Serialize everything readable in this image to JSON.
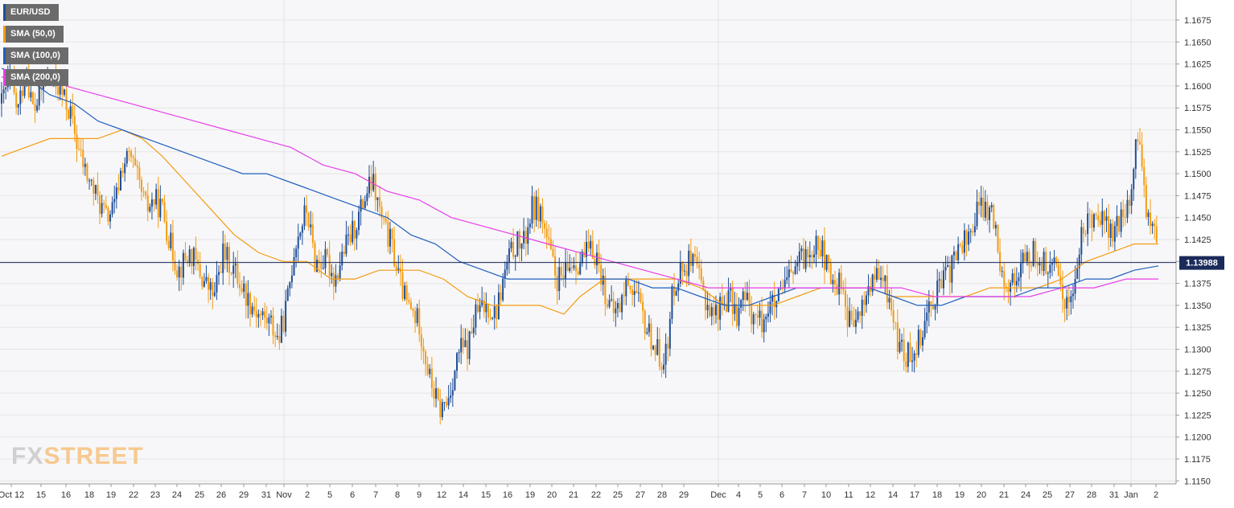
{
  "legend": [
    {
      "label": "EUR/USD",
      "color": "#1f4e96"
    },
    {
      "label": "SMA (50,0)",
      "color": "#f39c12"
    },
    {
      "label": "SMA (100,0)",
      "color": "#1f5fbf"
    },
    {
      "label": "SMA (200,0)",
      "color": "#e83ee8"
    }
  ],
  "brand": {
    "fx": "FX",
    "street": "STREET"
  },
  "price_tag": "1.13988",
  "colors": {
    "bull": "#1f4e96",
    "bear": "#f39c12",
    "sma50": "#f39c12",
    "sma100": "#1f5fbf",
    "sma200": "#e83ee8",
    "grid": "#e6e6e6",
    "price_line": "#1a2a5a",
    "tag_bg": "#1a2a5a"
  },
  "chart_data": {
    "type": "candlestick",
    "title": "",
    "ylim": [
      1.115,
      1.17
    ],
    "y_ticks": [
      "1.1675",
      "1.1650",
      "1.1625",
      "1.1600",
      "1.1575",
      "1.1550",
      "1.1525",
      "1.1500",
      "1.1475",
      "1.1450",
      "1.1425",
      "1.1400",
      "1.1375",
      "1.1350",
      "1.1325",
      "1.1300",
      "1.1275",
      "1.1250",
      "1.1225",
      "1.1200",
      "1.1175",
      "1.1150"
    ],
    "x_ticks": [
      "Oct 12",
      "15",
      "16",
      "18",
      "19",
      "22",
      "23",
      "24",
      "25",
      "26",
      "29",
      "31",
      "Nov",
      "2",
      "5",
      "6",
      "7",
      "8",
      "9",
      "12",
      "14",
      "15",
      "16",
      "19",
      "20",
      "21",
      "22",
      "25",
      "27",
      "28",
      "29",
      "Dec",
      "4",
      "5",
      "6",
      "7",
      "10",
      "11",
      "12",
      "14",
      "17",
      "18",
      "19",
      "20",
      "21",
      "24",
      "25",
      "27",
      "28",
      "31",
      "Jan",
      "2"
    ],
    "current_price": 1.13988,
    "price_anchors": [
      [
        0,
        1.158
      ],
      [
        10,
        1.161
      ],
      [
        20,
        1.157
      ],
      [
        30,
        1.162
      ],
      [
        40,
        1.157
      ],
      [
        55,
        1.161
      ],
      [
        70,
        1.16
      ],
      [
        85,
        1.157
      ],
      [
        95,
        1.153
      ],
      [
        105,
        1.15
      ],
      [
        120,
        1.147
      ],
      [
        130,
        1.145
      ],
      [
        140,
        1.146
      ],
      [
        150,
        1.151
      ],
      [
        160,
        1.152
      ],
      [
        170,
        1.149
      ],
      [
        180,
        1.146
      ],
      [
        190,
        1.147
      ],
      [
        200,
        1.146
      ],
      [
        210,
        1.142
      ],
      [
        220,
        1.139
      ],
      [
        235,
        1.141
      ],
      [
        250,
        1.138
      ],
      [
        265,
        1.136
      ],
      [
        275,
        1.141
      ],
      [
        290,
        1.139
      ],
      [
        305,
        1.136
      ],
      [
        320,
        1.134
      ],
      [
        335,
        1.133
      ],
      [
        345,
        1.131
      ],
      [
        355,
        1.135
      ],
      [
        365,
        1.142
      ],
      [
        380,
        1.146
      ],
      [
        390,
        1.14
      ],
      [
        405,
        1.14
      ],
      [
        415,
        1.138
      ],
      [
        425,
        1.141
      ],
      [
        440,
        1.144
      ],
      [
        455,
        1.148
      ],
      [
        462,
        1.149
      ],
      [
        475,
        1.144
      ],
      [
        485,
        1.142
      ],
      [
        495,
        1.138
      ],
      [
        505,
        1.135
      ],
      [
        520,
        1.133
      ],
      [
        532,
        1.127
      ],
      [
        545,
        1.123
      ],
      [
        555,
        1.124
      ],
      [
        570,
        1.13
      ],
      [
        580,
        1.13
      ],
      [
        590,
        1.134
      ],
      [
        605,
        1.135
      ],
      [
        615,
        1.134
      ],
      [
        630,
        1.14
      ],
      [
        640,
        1.142
      ],
      [
        650,
        1.142
      ],
      [
        660,
        1.146
      ],
      [
        670,
        1.146
      ],
      [
        680,
        1.142
      ],
      [
        690,
        1.138
      ],
      [
        700,
        1.138
      ],
      [
        710,
        1.14
      ],
      [
        720,
        1.14
      ],
      [
        730,
        1.141
      ],
      [
        740,
        1.141
      ],
      [
        750,
        1.137
      ],
      [
        760,
        1.134
      ],
      [
        770,
        1.135
      ],
      [
        780,
        1.138
      ],
      [
        790,
        1.136
      ],
      [
        800,
        1.133
      ],
      [
        810,
        1.131
      ],
      [
        820,
        1.129
      ],
      [
        830,
        1.13
      ],
      [
        835,
        1.137
      ],
      [
        845,
        1.139
      ],
      [
        855,
        1.14
      ],
      [
        865,
        1.139
      ],
      [
        875,
        1.136
      ],
      [
        885,
        1.134
      ],
      [
        895,
        1.135
      ],
      [
        905,
        1.136
      ],
      [
        915,
        1.134
      ],
      [
        925,
        1.136
      ],
      [
        935,
        1.134
      ],
      [
        945,
        1.133
      ],
      [
        955,
        1.135
      ],
      [
        965,
        1.135
      ],
      [
        975,
        1.137
      ],
      [
        985,
        1.139
      ],
      [
        995,
        1.14
      ],
      [
        1005,
        1.141
      ],
      [
        1015,
        1.143
      ],
      [
        1025,
        1.14
      ],
      [
        1035,
        1.137
      ],
      [
        1045,
        1.138
      ],
      [
        1055,
        1.133
      ],
      [
        1065,
        1.133
      ],
      [
        1075,
        1.136
      ],
      [
        1085,
        1.138
      ],
      [
        1095,
        1.138
      ],
      [
        1105,
        1.136
      ],
      [
        1115,
        1.131
      ],
      [
        1125,
        1.129
      ],
      [
        1135,
        1.13
      ],
      [
        1145,
        1.132
      ],
      [
        1155,
        1.135
      ],
      [
        1165,
        1.137
      ],
      [
        1175,
        1.138
      ],
      [
        1185,
        1.14
      ],
      [
        1195,
        1.142
      ],
      [
        1205,
        1.143
      ],
      [
        1215,
        1.146
      ],
      [
        1225,
        1.146
      ],
      [
        1235,
        1.145
      ],
      [
        1245,
        1.139
      ],
      [
        1255,
        1.137
      ],
      [
        1265,
        1.139
      ],
      [
        1275,
        1.14
      ],
      [
        1285,
        1.141
      ],
      [
        1295,
        1.14
      ],
      [
        1305,
        1.139
      ],
      [
        1315,
        1.139
      ],
      [
        1325,
        1.135
      ],
      [
        1335,
        1.137
      ],
      [
        1345,
        1.143
      ],
      [
        1355,
        1.145
      ],
      [
        1365,
        1.146
      ],
      [
        1375,
        1.144
      ],
      [
        1385,
        1.143
      ],
      [
        1395,
        1.145
      ],
      [
        1405,
        1.147
      ],
      [
        1415,
        1.155
      ],
      [
        1420,
        1.15
      ],
      [
        1425,
        1.146
      ],
      [
        1432,
        1.145
      ],
      [
        1437,
        1.142
      ],
      [
        1440,
        1.1399
      ]
    ],
    "series": [
      {
        "name": "SMA (50,0)",
        "points": [
          [
            0,
            1.152
          ],
          [
            30,
            1.153
          ],
          [
            60,
            1.154
          ],
          [
            90,
            1.154
          ],
          [
            120,
            1.154
          ],
          [
            150,
            1.155
          ],
          [
            175,
            1.154
          ],
          [
            200,
            1.152
          ],
          [
            230,
            1.149
          ],
          [
            260,
            1.146
          ],
          [
            290,
            1.143
          ],
          [
            320,
            1.141
          ],
          [
            350,
            1.14
          ],
          [
            380,
            1.14
          ],
          [
            410,
            1.138
          ],
          [
            440,
            1.138
          ],
          [
            470,
            1.139
          ],
          [
            490,
            1.139
          ],
          [
            520,
            1.139
          ],
          [
            550,
            1.138
          ],
          [
            580,
            1.136
          ],
          [
            610,
            1.135
          ],
          [
            640,
            1.135
          ],
          [
            670,
            1.135
          ],
          [
            700,
            1.134
          ],
          [
            720,
            1.136
          ],
          [
            750,
            1.138
          ],
          [
            780,
            1.138
          ],
          [
            810,
            1.138
          ],
          [
            840,
            1.138
          ],
          [
            870,
            1.137
          ],
          [
            900,
            1.135
          ],
          [
            930,
            1.135
          ],
          [
            960,
            1.135
          ],
          [
            990,
            1.136
          ],
          [
            1020,
            1.137
          ],
          [
            1050,
            1.137
          ],
          [
            1080,
            1.137
          ],
          [
            1110,
            1.136
          ],
          [
            1140,
            1.136
          ],
          [
            1170,
            1.136
          ],
          [
            1200,
            1.136
          ],
          [
            1230,
            1.137
          ],
          [
            1260,
            1.137
          ],
          [
            1290,
            1.137
          ],
          [
            1320,
            1.138
          ],
          [
            1350,
            1.14
          ],
          [
            1380,
            1.141
          ],
          [
            1410,
            1.142
          ],
          [
            1440,
            1.142
          ]
        ]
      },
      {
        "name": "SMA (100,0)",
        "points": [
          [
            0,
            1.162
          ],
          [
            30,
            1.161
          ],
          [
            60,
            1.159
          ],
          [
            90,
            1.158
          ],
          [
            120,
            1.156
          ],
          [
            150,
            1.155
          ],
          [
            180,
            1.154
          ],
          [
            210,
            1.153
          ],
          [
            240,
            1.152
          ],
          [
            270,
            1.151
          ],
          [
            300,
            1.15
          ],
          [
            330,
            1.15
          ],
          [
            360,
            1.149
          ],
          [
            390,
            1.148
          ],
          [
            420,
            1.147
          ],
          [
            450,
            1.146
          ],
          [
            480,
            1.145
          ],
          [
            510,
            1.143
          ],
          [
            540,
            1.142
          ],
          [
            570,
            1.14
          ],
          [
            600,
            1.139
          ],
          [
            630,
            1.138
          ],
          [
            660,
            1.138
          ],
          [
            690,
            1.138
          ],
          [
            720,
            1.138
          ],
          [
            750,
            1.138
          ],
          [
            780,
            1.138
          ],
          [
            810,
            1.137
          ],
          [
            840,
            1.137
          ],
          [
            870,
            1.136
          ],
          [
            900,
            1.135
          ],
          [
            930,
            1.135
          ],
          [
            960,
            1.136
          ],
          [
            990,
            1.137
          ],
          [
            1020,
            1.137
          ],
          [
            1050,
            1.137
          ],
          [
            1080,
            1.137
          ],
          [
            1110,
            1.136
          ],
          [
            1140,
            1.135
          ],
          [
            1170,
            1.135
          ],
          [
            1200,
            1.136
          ],
          [
            1230,
            1.136
          ],
          [
            1260,
            1.136
          ],
          [
            1290,
            1.137
          ],
          [
            1320,
            1.137
          ],
          [
            1350,
            1.138
          ],
          [
            1380,
            1.138
          ],
          [
            1410,
            1.139
          ],
          [
            1440,
            1.1395
          ]
        ]
      },
      {
        "name": "SMA (200,0)",
        "points": [
          [
            0,
            1.161
          ],
          [
            40,
            1.161
          ],
          [
            80,
            1.16
          ],
          [
            120,
            1.159
          ],
          [
            160,
            1.158
          ],
          [
            200,
            1.157
          ],
          [
            240,
            1.156
          ],
          [
            280,
            1.155
          ],
          [
            320,
            1.154
          ],
          [
            360,
            1.153
          ],
          [
            400,
            1.151
          ],
          [
            440,
            1.15
          ],
          [
            480,
            1.148
          ],
          [
            520,
            1.147
          ],
          [
            560,
            1.145
          ],
          [
            600,
            1.144
          ],
          [
            640,
            1.143
          ],
          [
            680,
            1.142
          ],
          [
            720,
            1.141
          ],
          [
            760,
            1.14
          ],
          [
            800,
            1.139
          ],
          [
            840,
            1.138
          ],
          [
            880,
            1.137
          ],
          [
            920,
            1.137
          ],
          [
            960,
            1.137
          ],
          [
            1000,
            1.137
          ],
          [
            1040,
            1.137
          ],
          [
            1080,
            1.137
          ],
          [
            1120,
            1.137
          ],
          [
            1160,
            1.136
          ],
          [
            1200,
            1.136
          ],
          [
            1240,
            1.136
          ],
          [
            1280,
            1.136
          ],
          [
            1320,
            1.137
          ],
          [
            1360,
            1.137
          ],
          [
            1400,
            1.138
          ],
          [
            1440,
            1.138
          ]
        ]
      }
    ]
  }
}
